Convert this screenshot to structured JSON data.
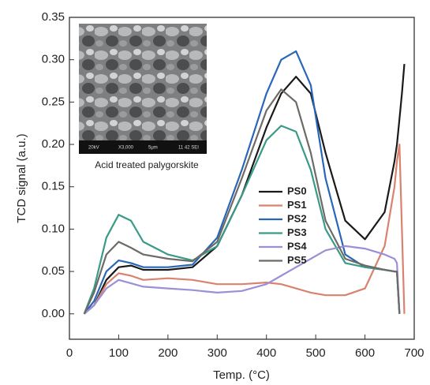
{
  "chart_data": {
    "type": "line",
    "y_label": "TCD signal (a.u.)",
    "x_label": "Temp. (°C)",
    "x": [
      30,
      50,
      75,
      100,
      125,
      150,
      200,
      250,
      300,
      350,
      400,
      430,
      460,
      490,
      520,
      560,
      600,
      640,
      660,
      665,
      670,
      675,
      680
    ],
    "series": [
      {
        "name": "PS0",
        "color": "#1a1a1a",
        "values": [
          0,
          0.01,
          0.04,
          0.055,
          0.057,
          0.052,
          0.052,
          0.055,
          0.08,
          0.14,
          0.22,
          0.26,
          0.28,
          0.26,
          0.19,
          0.11,
          0.088,
          0.12,
          0.18,
          0.2,
          0.23,
          0.26,
          0.295
        ]
      },
      {
        "name": "PS1",
        "color": "#d9826e",
        "values": [
          0,
          0.01,
          0.035,
          0.048,
          0.045,
          0.04,
          0.042,
          0.04,
          0.035,
          0.035,
          0.037,
          0.035,
          0.03,
          0.025,
          0.022,
          0.022,
          0.03,
          0.08,
          0.15,
          0.18,
          0.2,
          0.1,
          0
        ]
      },
      {
        "name": "PS2",
        "color": "#2a66b8",
        "values": [
          0,
          0.015,
          0.05,
          0.063,
          0.06,
          0.055,
          0.055,
          0.058,
          0.09,
          0.17,
          0.26,
          0.3,
          0.31,
          0.27,
          0.16,
          0.07,
          0.055,
          0.052,
          0.05,
          0.05,
          0,
          null,
          null
        ]
      },
      {
        "name": "PS3",
        "color": "#3a9a88",
        "values": [
          0,
          0.03,
          0.09,
          0.117,
          0.11,
          0.085,
          0.07,
          0.063,
          0.08,
          0.14,
          0.205,
          0.222,
          0.215,
          0.17,
          0.1,
          0.06,
          0.055,
          0.052,
          0.05,
          0.05,
          0,
          null,
          null
        ]
      },
      {
        "name": "PS4",
        "color": "#9b8fd8",
        "values": [
          0,
          0.01,
          0.03,
          0.04,
          0.036,
          0.032,
          0.03,
          0.028,
          0.025,
          0.027,
          0.035,
          0.045,
          0.055,
          0.065,
          0.075,
          0.08,
          0.077,
          0.07,
          0.065,
          0.06,
          0,
          null,
          null
        ]
      },
      {
        "name": "PS5",
        "color": "#6e6a66",
        "values": [
          0,
          0.025,
          0.07,
          0.085,
          0.078,
          0.07,
          0.065,
          0.062,
          0.085,
          0.16,
          0.24,
          0.265,
          0.25,
          0.19,
          0.11,
          0.065,
          0.057,
          0.052,
          0.05,
          0.05,
          0,
          null,
          null
        ]
      }
    ],
    "xlim": [
      0,
      700
    ],
    "xticks": [
      0,
      100,
      200,
      300,
      400,
      500,
      600,
      700
    ],
    "ylim": [
      -0.03,
      0.35
    ],
    "yticks": [
      {
        "value": 0,
        "label": "0.00"
      },
      0.05,
      {
        "value": 0.1,
        "label": "0.10"
      },
      0.15,
      {
        "value": 0.2,
        "label": "0.20"
      },
      0.25,
      {
        "value": 0.3,
        "label": "0.30"
      },
      0.35
    ],
    "legend": "center",
    "inset": {
      "caption": "Acid treated palygorskite",
      "scale_texts": [
        "20kV",
        "X3,000",
        "5μm",
        "11 42 SEI"
      ]
    }
  }
}
